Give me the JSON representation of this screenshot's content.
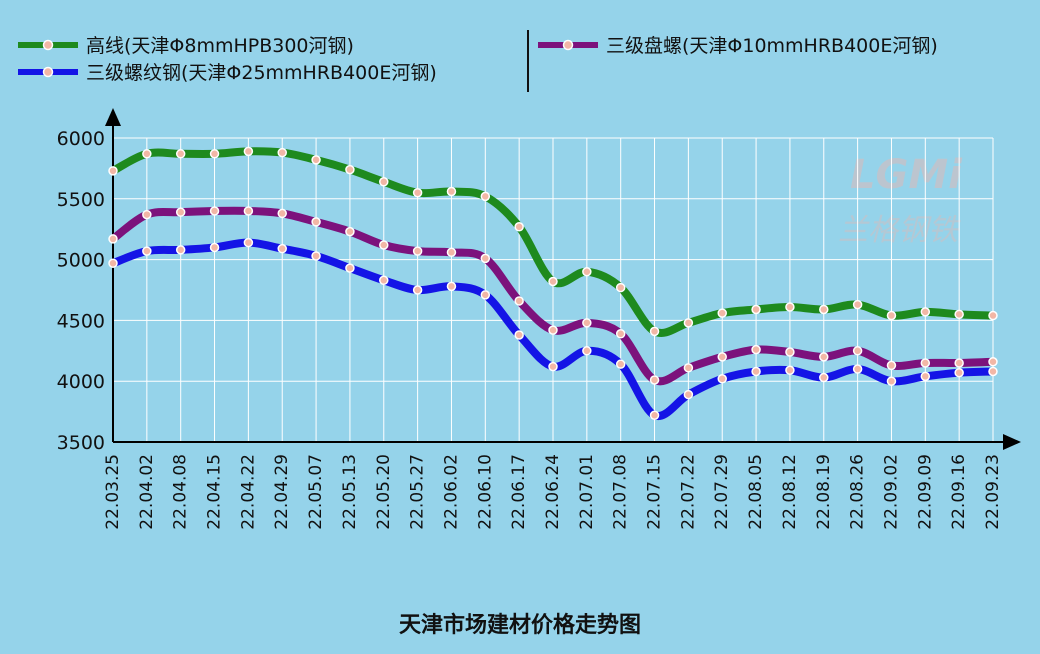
{
  "chart_data": {
    "type": "line",
    "title": "天津市场建材价格走势图",
    "xlabel": "",
    "ylabel": "",
    "ylim": [
      3500,
      6000
    ],
    "yticks": [
      3500,
      4000,
      4500,
      5000,
      5500,
      6000
    ],
    "grid": true,
    "legend_position": "top",
    "categories": [
      "22.03.25",
      "22.04.02",
      "22.04.08",
      "22.04.15",
      "22.04.22",
      "22.04.29",
      "22.05.07",
      "22.05.13",
      "22.05.20",
      "22.05.27",
      "22.06.02",
      "22.06.10",
      "22.06.17",
      "22.06.24",
      "22.07.01",
      "22.07.08",
      "22.07.15",
      "22.07.22",
      "22.07.29",
      "22.08.05",
      "22.08.12",
      "22.08.19",
      "22.08.26",
      "22.09.02",
      "22.09.09",
      "22.09.16",
      "22.09.23"
    ],
    "series": [
      {
        "name": "高线(天津Φ8mmHPB300河钢)",
        "color": "#1e8a1e",
        "marker_color": "#f2b7a6",
        "values": [
          5730,
          5870,
          5870,
          5870,
          5890,
          5880,
          5820,
          5740,
          5640,
          5550,
          5560,
          5520,
          5270,
          4820,
          4900,
          4770,
          4410,
          4480,
          4560,
          4590,
          4610,
          4590,
          4630,
          4540,
          4570,
          4550,
          4540
        ]
      },
      {
        "name": "三级盘螺(天津Φ10mmHRB400E河钢)",
        "color": "#7c127c",
        "marker_color": "#f2b7a6",
        "values": [
          5170,
          5370,
          5390,
          5400,
          5400,
          5380,
          5310,
          5230,
          5120,
          5070,
          5060,
          5010,
          4660,
          4420,
          4480,
          4390,
          4010,
          4110,
          4200,
          4260,
          4240,
          4200,
          4250,
          4130,
          4150,
          4150,
          4160
        ]
      },
      {
        "name": "三级螺纹钢(天津Φ25mmHRB400E河钢)",
        "color": "#1414e6",
        "marker_color": "#f2b7a6",
        "values": [
          4970,
          5070,
          5080,
          5100,
          5140,
          5090,
          5030,
          4930,
          4830,
          4750,
          4780,
          4710,
          4380,
          4120,
          4250,
          4140,
          3720,
          3890,
          4020,
          4080,
          4090,
          4030,
          4100,
          4000,
          4040,
          4070,
          4080
        ]
      }
    ]
  },
  "watermark": {
    "logo": "LGMi",
    "sub": "兰格钢铁"
  },
  "colors": {
    "background": "#95d3ea",
    "grid": "#ffffff",
    "axis": "#000000"
  }
}
